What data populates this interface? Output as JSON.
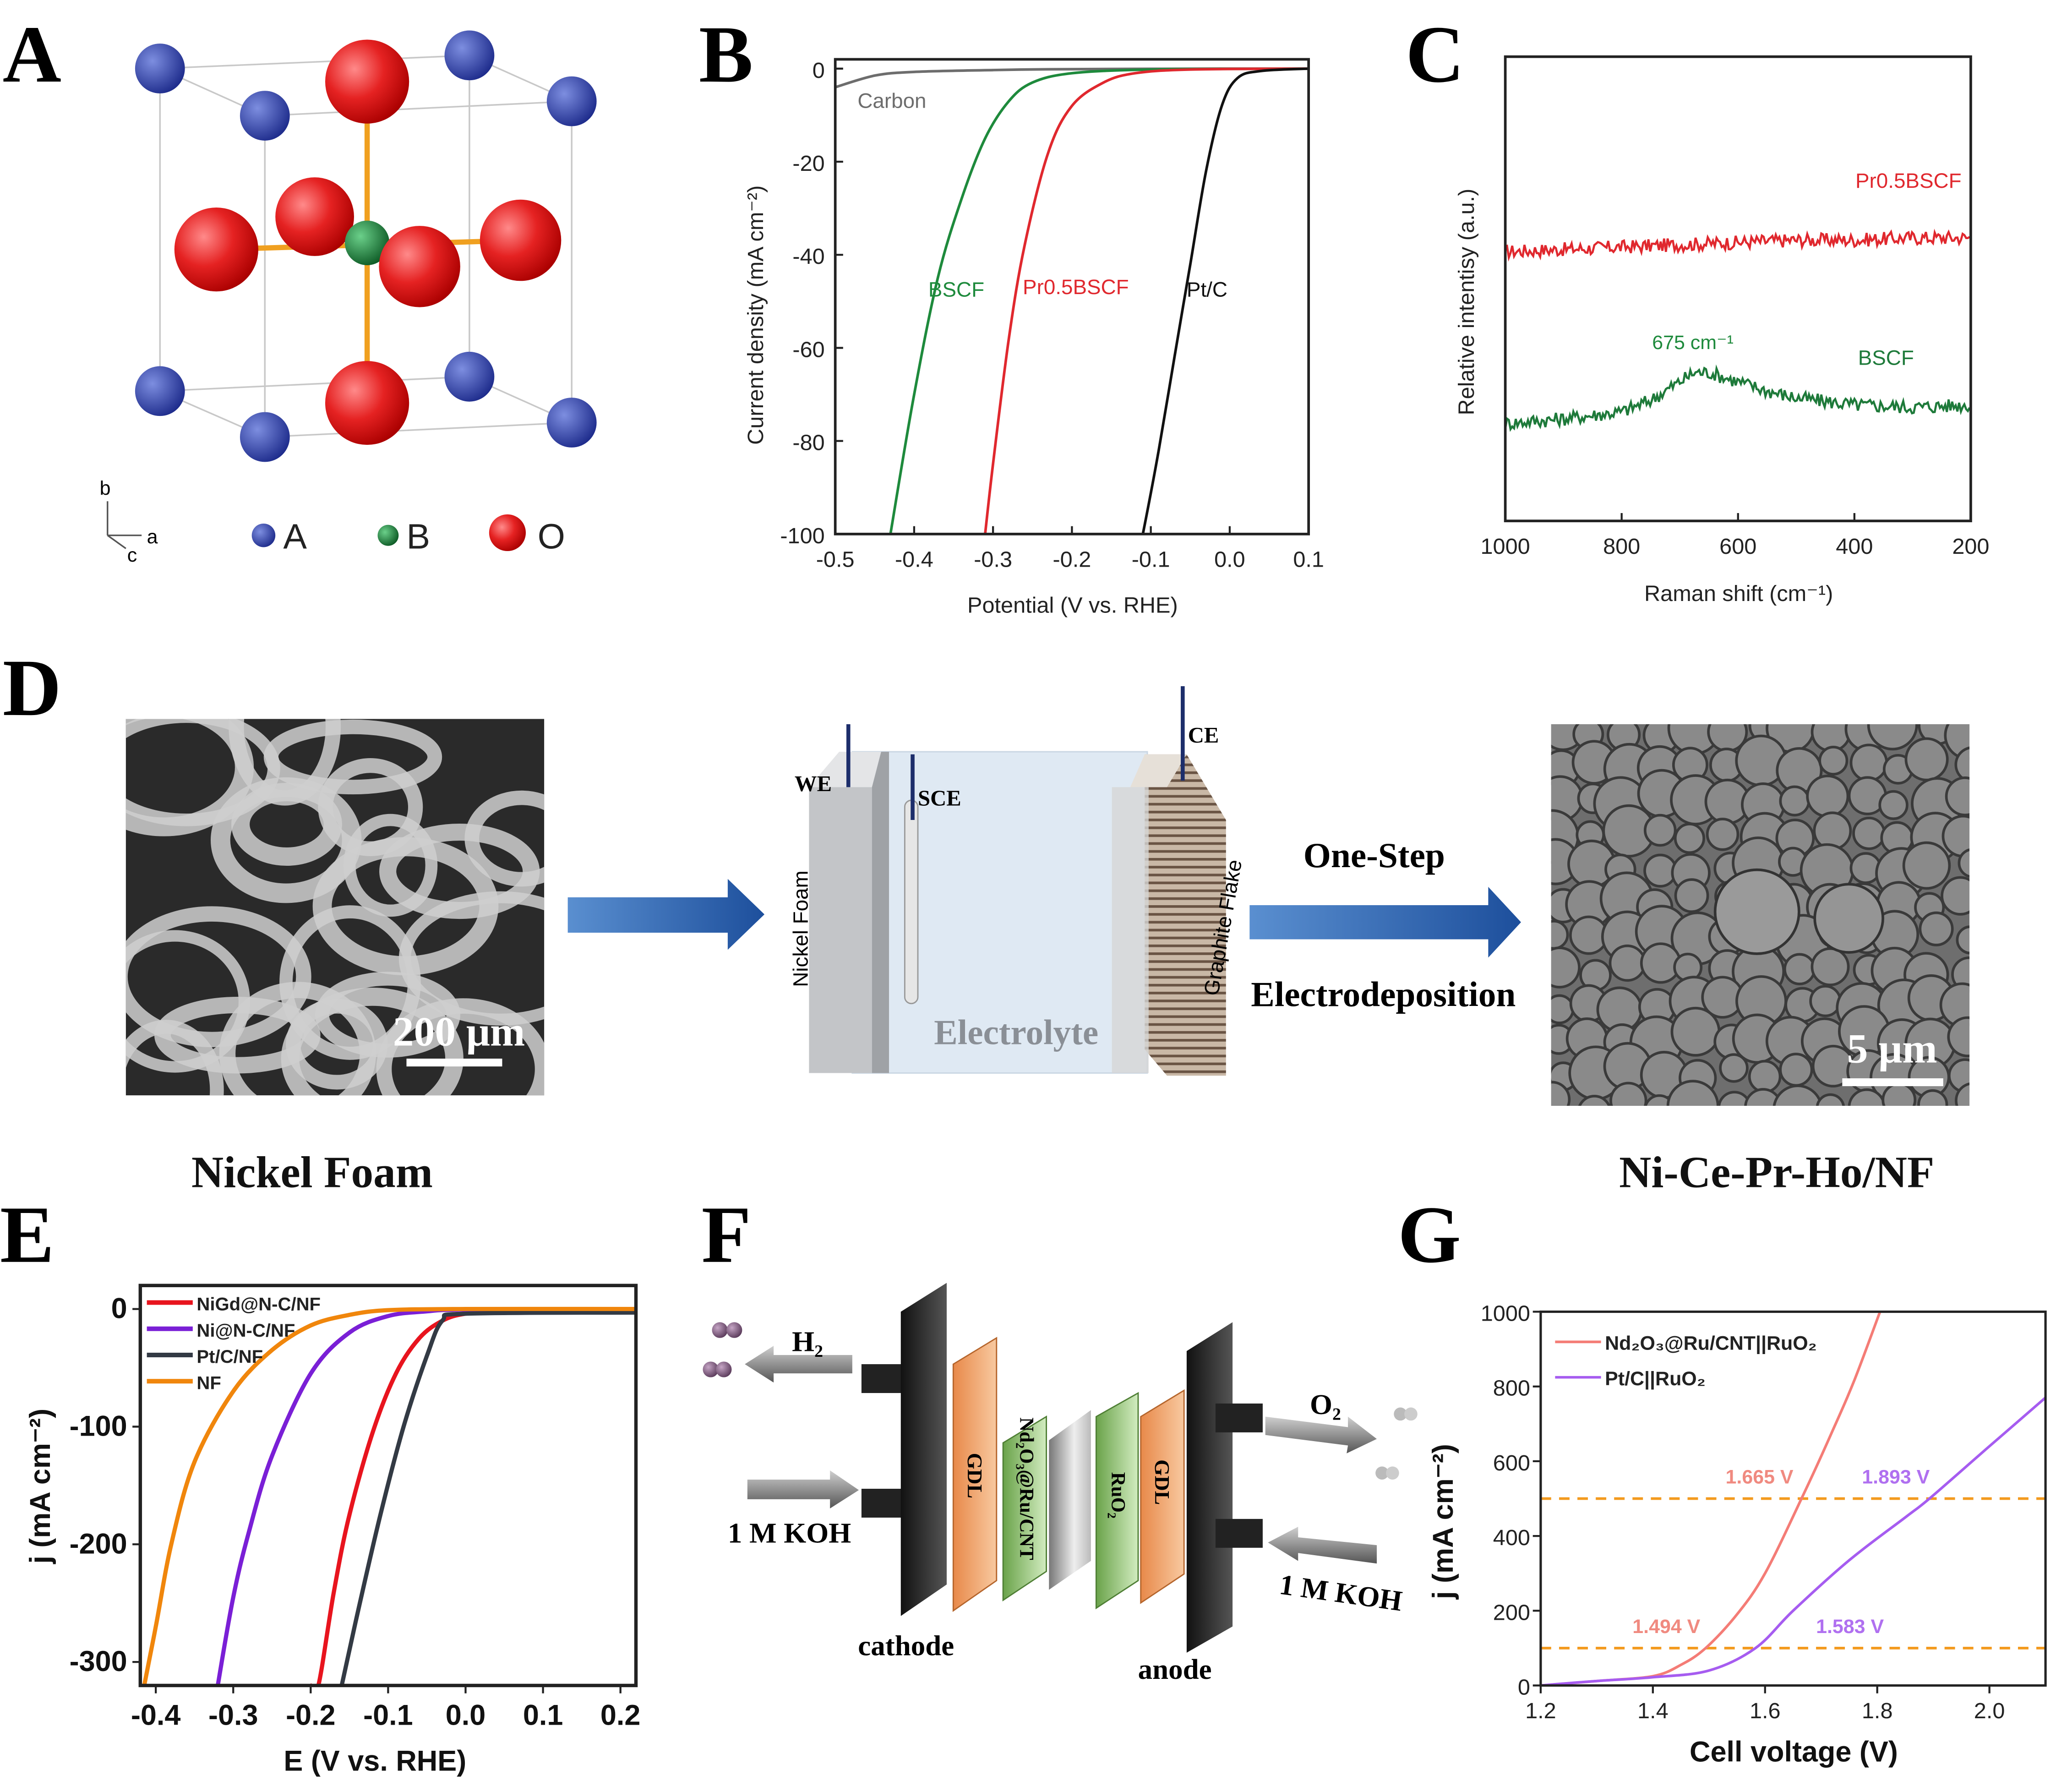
{
  "panel_labels": [
    "A",
    "B",
    "C",
    "D",
    "E",
    "F",
    "G"
  ],
  "panel_a": {
    "legend": [
      {
        "label": "A",
        "color": "#2b3fa8"
      },
      {
        "label": "B",
        "color": "#1f7a3a"
      },
      {
        "label": "O",
        "color": "#e02020"
      }
    ],
    "axes": {
      "b": "b",
      "a": "a",
      "c": "c"
    }
  },
  "panel_d": {
    "left_image_caption": "Nickel Foam",
    "left_scale_bar": "200 μm",
    "right_image_caption": "Ni-Ce-Pr-Ho/NF",
    "right_scale_bar": "5 μm",
    "cell": {
      "we": "WE",
      "sce": "SCE",
      "ce": "CE",
      "left_slab": "Nickel Foam",
      "right_slab": "Graphite Flake",
      "electrolyte": "Electrolyte"
    },
    "arrow_top": "One-Step",
    "arrow_bottom": "Electrodeposition"
  },
  "panel_f": {
    "h2": "H₂",
    "o2": "O₂",
    "koh_left": "1 M KOH",
    "koh_right": "1 M KOH",
    "cathode": "cathode",
    "anode": "anode",
    "gdl_left": "GDL",
    "gdl_right": "GDL",
    "cathode_catalyst": "Nd₂O₃@Ru/CNT",
    "anode_catalyst": "RuO₂"
  },
  "chart_data": [
    {
      "id": "B",
      "type": "line",
      "xlabel": "Potential (V vs. RHE)",
      "ylabel": "Current density (mA cm⁻²)",
      "xlim": [
        -0.5,
        0.1
      ],
      "ylim": [
        -100,
        2
      ],
      "xticks": [
        -0.5,
        -0.4,
        -0.3,
        -0.2,
        -0.1,
        0.0,
        0.1
      ],
      "xtick_labels": [
        "-0.5",
        "-0.4",
        "-0.3",
        "-0.2",
        "-0.1",
        "0.0",
        "0.1"
      ],
      "yticks": [
        0,
        -20,
        -40,
        -60,
        -80,
        -100
      ],
      "ytick_labels": [
        "0",
        "-20",
        "-40",
        "-60",
        "-80",
        "-100"
      ],
      "grid": false,
      "series": [
        {
          "name": "Carbon",
          "color": "#6d6d6d",
          "x": [
            -0.5,
            -0.45,
            -0.4,
            -0.3,
            -0.2,
            0.0,
            0.1
          ],
          "y": [
            -4,
            -1.5,
            -0.7,
            -0.3,
            -0.1,
            0,
            0
          ]
        },
        {
          "name": "BSCF",
          "color": "#1e8a3c",
          "x": [
            0.1,
            -0.1,
            -0.2,
            -0.25,
            -0.28,
            -0.31,
            -0.34,
            -0.37,
            -0.4,
            -0.43
          ],
          "y": [
            0,
            -0.2,
            -1,
            -3,
            -7,
            -15,
            -28,
            -45,
            -70,
            -100
          ]
        },
        {
          "name": "Pr0.5BSCF",
          "color": "#e0282e",
          "x": [
            0.1,
            -0.05,
            -0.12,
            -0.16,
            -0.2,
            -0.23,
            -0.26,
            -0.28,
            -0.3,
            -0.31
          ],
          "y": [
            0,
            -0.2,
            -1,
            -3,
            -8,
            -18,
            -38,
            -58,
            -85,
            -100
          ]
        },
        {
          "name": "Pt/C",
          "color": "#111111",
          "x": [
            0.1,
            0.04,
            0.01,
            -0.01,
            -0.03,
            -0.05,
            -0.07,
            -0.09,
            -0.11
          ],
          "y": [
            0,
            -0.5,
            -2,
            -8,
            -22,
            -42,
            -62,
            -82,
            -100
          ]
        }
      ]
    },
    {
      "id": "C",
      "type": "line",
      "xlabel": "Raman shift (cm⁻¹)",
      "ylabel": "Relative intentisy (a.u.)",
      "xlim": [
        1000,
        200
      ],
      "ylim": [
        0,
        1
      ],
      "xticks": [
        1000,
        800,
        600,
        400,
        200
      ],
      "xtick_labels": [
        "1000",
        "800",
        "600",
        "400",
        "200"
      ],
      "yticks": [],
      "ytick_labels": [],
      "grid": false,
      "annotations": [
        {
          "text": "675 cm⁻¹",
          "color": "#1e8a3c"
        }
      ],
      "series": [
        {
          "name": "Pr0.5BSCF",
          "color": "#e0282e",
          "x": [
            1000,
            900,
            800,
            700,
            600,
            500,
            400,
            300,
            200
          ],
          "y": [
            0.58,
            0.585,
            0.59,
            0.595,
            0.6,
            0.605,
            0.605,
            0.61,
            0.61
          ]
        },
        {
          "name": "BSCF",
          "color": "#1e7a3a",
          "x": [
            1000,
            900,
            800,
            750,
            700,
            675,
            650,
            600,
            550,
            500,
            400,
            300,
            200
          ],
          "y": [
            0.21,
            0.22,
            0.235,
            0.26,
            0.3,
            0.32,
            0.32,
            0.3,
            0.28,
            0.265,
            0.25,
            0.245,
            0.25
          ]
        }
      ]
    },
    {
      "id": "E",
      "type": "line",
      "xlabel": "E (V vs. RHE)",
      "ylabel": "j (mA cm⁻²)",
      "xlim": [
        -0.42,
        0.22
      ],
      "ylim": [
        -320,
        20
      ],
      "xticks": [
        -0.4,
        -0.3,
        -0.2,
        -0.1,
        0.0,
        0.1,
        0.2
      ],
      "xtick_labels": [
        "-0.4",
        "-0.3",
        "-0.2",
        "-0.1",
        "0.0",
        "0.1",
        "0.2"
      ],
      "yticks": [
        0,
        -100,
        -200,
        -300
      ],
      "ytick_labels": [
        "0",
        "-100",
        "-200",
        "-300"
      ],
      "grid": false,
      "legend_position": "top-left",
      "series": [
        {
          "name": "NiGd@N-C/NF",
          "color": "#e8141e",
          "x": [
            0.22,
            0.05,
            0.0,
            -0.03,
            -0.06,
            -0.09,
            -0.12,
            -0.15,
            -0.17,
            -0.19,
            -0.2
          ],
          "y": [
            -1,
            -2,
            -4,
            -10,
            -25,
            -55,
            -105,
            -175,
            -240,
            -320,
            -320
          ]
        },
        {
          "name": "Ni@N-C/NF",
          "color": "#7a1fd6",
          "x": [
            0.22,
            0.0,
            -0.05,
            -0.1,
            -0.15,
            -0.2,
            -0.25,
            -0.28,
            -0.3,
            -0.32
          ],
          "y": [
            0,
            -0.5,
            -2,
            -6,
            -20,
            -55,
            -125,
            -190,
            -245,
            -320
          ]
        },
        {
          "name": "Pt/C/NF",
          "color": "#333a44",
          "x": [
            0.22,
            0.0,
            -0.03,
            -0.05,
            -0.08,
            -0.11,
            -0.14,
            -0.16
          ],
          "y": [
            -3,
            -4,
            -10,
            -40,
            -100,
            -175,
            -260,
            -320
          ]
        },
        {
          "name": "NF",
          "color": "#f0860c",
          "x": [
            0.22,
            0.0,
            -0.1,
            -0.15,
            -0.2,
            -0.25,
            -0.3,
            -0.35,
            -0.38,
            -0.4,
            -0.415
          ],
          "y": [
            0,
            0,
            -1,
            -5,
            -14,
            -35,
            -70,
            -130,
            -200,
            -270,
            -320
          ]
        }
      ]
    },
    {
      "id": "G",
      "type": "line",
      "xlabel": "Cell voltage (V)",
      "ylabel": "j (mA cm⁻²)",
      "xlim": [
        1.2,
        2.1
      ],
      "ylim": [
        0,
        1000
      ],
      "xticks": [
        1.2,
        1.4,
        1.6,
        1.8,
        2.0
      ],
      "xtick_labels": [
        "1.2",
        "1.4",
        "1.6",
        "1.8",
        "2.0"
      ],
      "yticks": [
        0,
        200,
        400,
        600,
        800,
        1000
      ],
      "ytick_labels": [
        "0",
        "200",
        "400",
        "600",
        "800",
        "1000"
      ],
      "grid": false,
      "legend_position": "top-left",
      "reference_lines": {
        "y": [
          100,
          500
        ],
        "color": "#f39a1e",
        "style": "dashed"
      },
      "annotations": [
        {
          "text": "1.665 V",
          "color": "#f08a80"
        },
        {
          "text": "1.893 V",
          "color": "#b070f0"
        },
        {
          "text": "1.494 V",
          "color": "#f08a80"
        },
        {
          "text": "1.583 V",
          "color": "#b070f0"
        }
      ],
      "series": [
        {
          "name": "Nd₂O₃@Ru/CNT||RuO₂",
          "color": "#f47c76",
          "x": [
            1.2,
            1.3,
            1.4,
            1.45,
            1.494,
            1.55,
            1.6,
            1.665,
            1.72,
            1.76,
            1.805
          ],
          "y": [
            0,
            12,
            25,
            55,
            100,
            190,
            300,
            500,
            680,
            820,
            1000
          ]
        },
        {
          "name": "Pt/C||RuO₂",
          "color": "#a65cf0",
          "x": [
            1.2,
            1.3,
            1.4,
            1.5,
            1.583,
            1.65,
            1.75,
            1.85,
            1.893,
            2.0,
            2.1
          ],
          "y": [
            0,
            12,
            22,
            40,
            100,
            200,
            335,
            450,
            500,
            640,
            770
          ]
        }
      ]
    }
  ]
}
